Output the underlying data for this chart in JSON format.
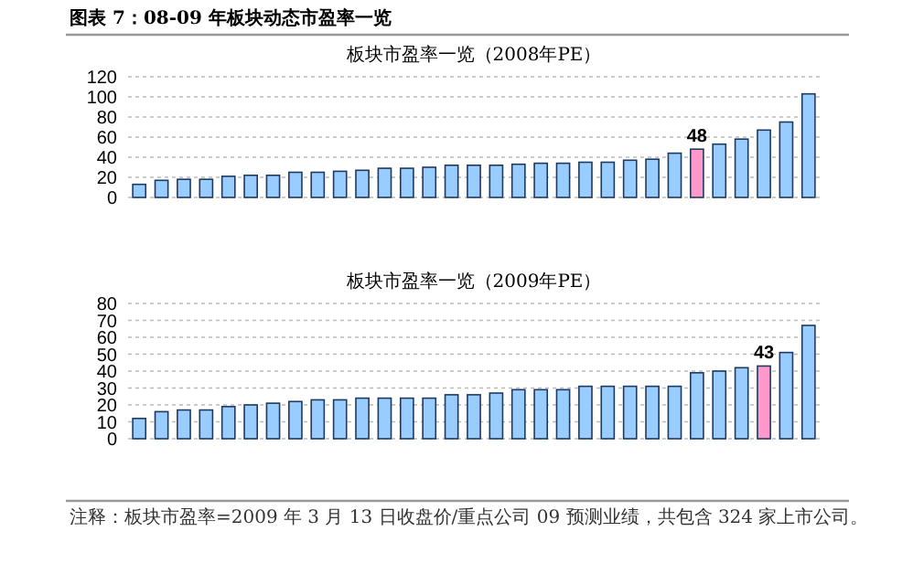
{
  "chart_data": [
    {
      "type": "bar",
      "title": "图表 7：08-09 年板块动态市盈率一览",
      "subtitle": "板块市盈率一览（2008年PE）",
      "categories": [
        null,
        null,
        null,
        null,
        null,
        null,
        null,
        null,
        null,
        null,
        null,
        null,
        null,
        null,
        null,
        null,
        null,
        null,
        null,
        null,
        null,
        null,
        null,
        null,
        null,
        null,
        null,
        null,
        null,
        null,
        null
      ],
      "values": [
        13,
        17,
        18,
        18,
        21,
        22,
        22,
        25,
        25,
        26,
        27,
        29,
        29,
        30,
        32,
        32,
        32,
        33,
        34,
        34,
        35,
        35,
        37,
        38,
        44,
        48,
        53,
        58,
        67,
        75,
        103
      ],
      "colors": [
        "#99ccff",
        "#99ccff",
        "#99ccff",
        "#99ccff",
        "#99ccff",
        "#99ccff",
        "#99ccff",
        "#99ccff",
        "#99ccff",
        "#99ccff",
        "#99ccff",
        "#99ccff",
        "#99ccff",
        "#99ccff",
        "#99ccff",
        "#99ccff",
        "#99ccff",
        "#99ccff",
        "#99ccff",
        "#99ccff",
        "#99ccff",
        "#99ccff",
        "#99ccff",
        "#99ccff",
        "#99ccff",
        "#ff99cc",
        "#99ccff",
        "#99ccff",
        "#99ccff",
        "#99ccff",
        "#99ccff"
      ],
      "value_labels": [
        null,
        null,
        null,
        null,
        null,
        null,
        null,
        null,
        null,
        null,
        null,
        null,
        null,
        null,
        null,
        null,
        null,
        null,
        null,
        null,
        null,
        null,
        null,
        null,
        null,
        "48",
        null,
        null,
        null,
        null,
        null
      ],
      "ylim": [
        0,
        120
      ],
      "yticks": [
        0,
        20,
        40,
        60,
        80,
        100,
        120
      ],
      "grid": "y"
    },
    {
      "type": "bar",
      "subtitle": "板块市盈率一览（2009年PE）",
      "categories": [
        null,
        null,
        null,
        null,
        null,
        null,
        null,
        null,
        null,
        null,
        null,
        null,
        null,
        null,
        null,
        null,
        null,
        null,
        null,
        null,
        null,
        null,
        null,
        null,
        null,
        null,
        null,
        null,
        null,
        null,
        null
      ],
      "values": [
        12,
        16,
        17,
        17,
        19,
        20,
        21,
        22,
        23,
        23,
        24,
        24,
        24,
        24,
        26,
        26,
        27,
        29,
        29,
        29,
        31,
        31,
        31,
        31,
        31,
        39,
        40,
        42,
        43,
        51,
        67
      ],
      "colors": [
        "#99ccff",
        "#99ccff",
        "#99ccff",
        "#99ccff",
        "#99ccff",
        "#99ccff",
        "#99ccff",
        "#99ccff",
        "#99ccff",
        "#99ccff",
        "#99ccff",
        "#99ccff",
        "#99ccff",
        "#99ccff",
        "#99ccff",
        "#99ccff",
        "#99ccff",
        "#99ccff",
        "#99ccff",
        "#99ccff",
        "#99ccff",
        "#99ccff",
        "#99ccff",
        "#99ccff",
        "#99ccff",
        "#99ccff",
        "#99ccff",
        "#99ccff",
        "#ff99cc",
        "#99ccff",
        "#99ccff"
      ],
      "value_labels": [
        null,
        null,
        null,
        null,
        null,
        null,
        null,
        null,
        null,
        null,
        null,
        null,
        null,
        null,
        null,
        null,
        null,
        null,
        null,
        null,
        null,
        null,
        null,
        null,
        null,
        null,
        null,
        null,
        "43",
        null,
        null
      ],
      "ylim": [
        0,
        80
      ],
      "yticks": [
        0,
        10,
        20,
        30,
        40,
        50,
        60,
        70,
        80
      ],
      "grid": "y",
      "annotations": [
        "注释：板块市盈率=2009 年 3 月 13 日收盘价/重点公司 09 预测业绩，共包含 324 家上市公司。"
      ]
    }
  ]
}
